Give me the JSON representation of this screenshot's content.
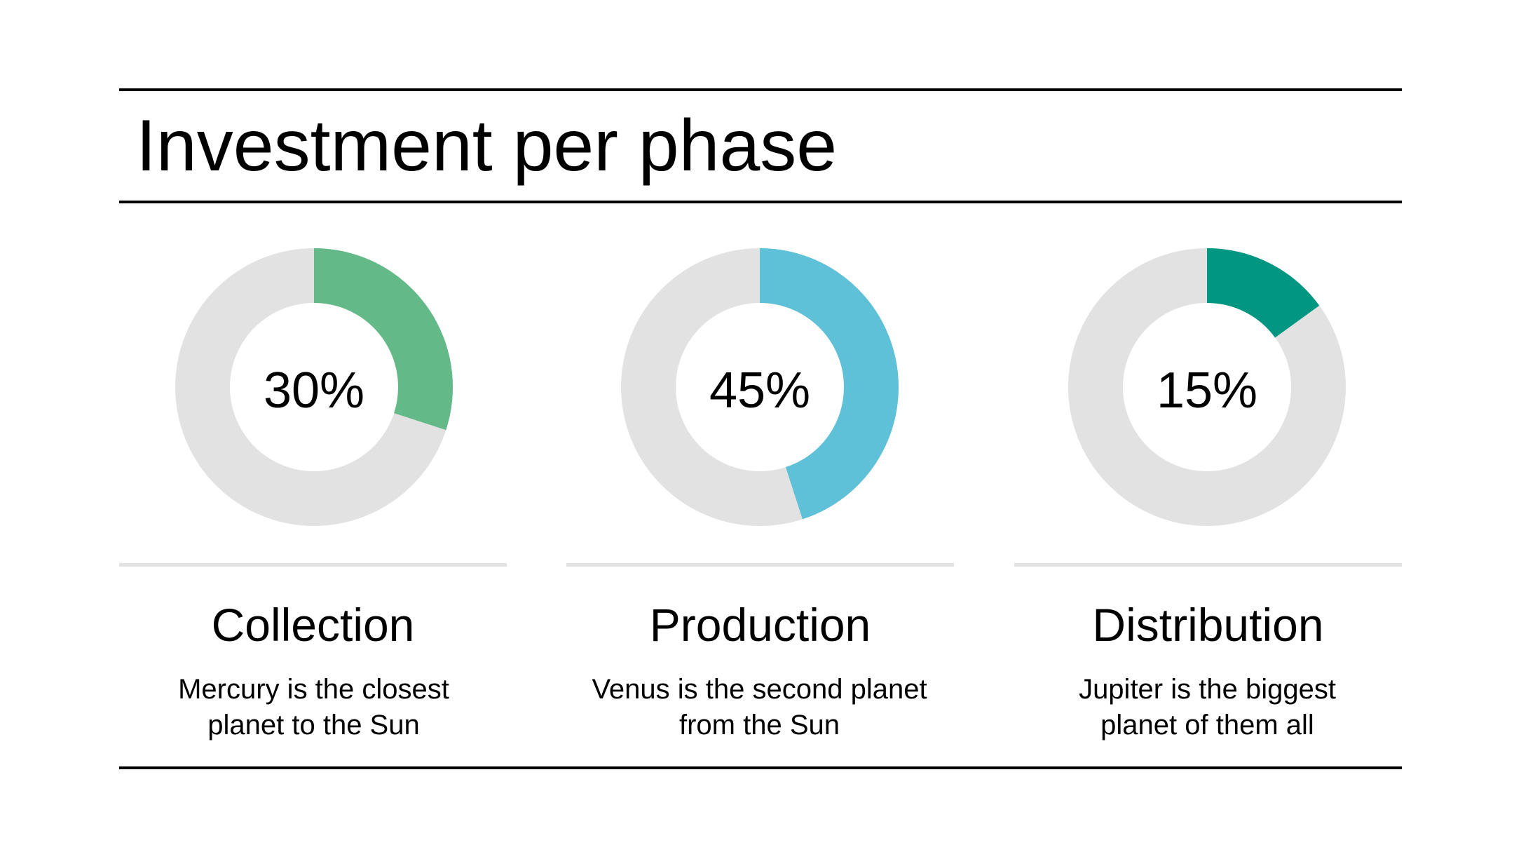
{
  "title": "Investment per phase",
  "colors": {
    "track": "#e2e2e2",
    "collection": "#63b987",
    "production": "#5fc1d7",
    "distribution": "#009682"
  },
  "chart_data": [
    {
      "type": "pie",
      "style": "donut",
      "category": "Collection",
      "value": 30,
      "unit": "%",
      "label": "30%",
      "color": "#63b987"
    },
    {
      "type": "pie",
      "style": "donut",
      "category": "Production",
      "value": 45,
      "unit": "%",
      "label": "45%",
      "color": "#5fc1d7"
    },
    {
      "type": "pie",
      "style": "donut",
      "category": "Distribution",
      "value": 15,
      "unit": "%",
      "label": "15%",
      "color": "#009682"
    }
  ],
  "phases": [
    {
      "name": "Collection",
      "description": "Mercury is the closest planet to the Sun"
    },
    {
      "name": "Production",
      "description": "Venus is the second planet from the Sun"
    },
    {
      "name": "Distribution",
      "description": "Jupiter is the biggest planet of them all"
    }
  ]
}
